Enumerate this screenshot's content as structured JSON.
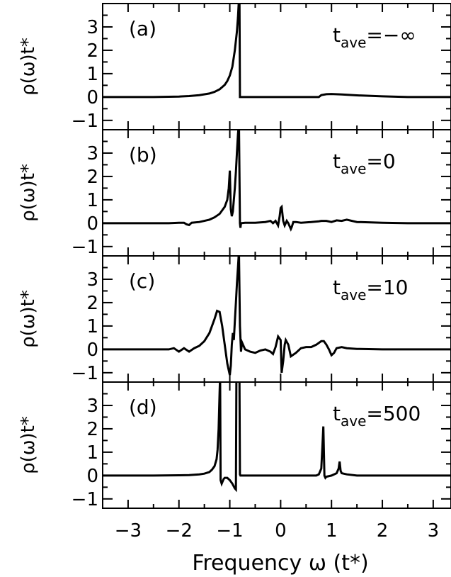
{
  "chart_data": {
    "type": "line",
    "xlabel": "Frequency ω (t*)",
    "xlim": [
      -3.5,
      3.35
    ],
    "ylim": [
      -1.4,
      4.0
    ],
    "x_ticks": [
      -3,
      -2,
      -1,
      0,
      1,
      2,
      3
    ],
    "x_tick_labels": [
      "−3",
      "−2",
      "−1",
      "0",
      "1",
      "2",
      "3"
    ],
    "y_ticks": [
      -1,
      0,
      1,
      2,
      3
    ],
    "y_tick_labels": [
      "−1",
      "0",
      "1",
      "2",
      "3"
    ],
    "line_color": "#000000",
    "panels": [
      {
        "id": "a",
        "panel_label": "(a)",
        "ylabel": "ρ(ω)t*",
        "annotation": {
          "base": "t",
          "sub": "ave",
          "value": "=−∞"
        },
        "x": [
          -3.5,
          -2.5,
          -2.0,
          -1.8,
          -1.6,
          -1.4,
          -1.3,
          -1.2,
          -1.1,
          -1.05,
          -1.0,
          -0.95,
          -0.9,
          -0.86,
          -0.84,
          -0.83,
          -0.82,
          -0.81,
          -0.805,
          -0.8,
          -0.79,
          -0.5,
          0.0,
          0.5,
          0.75,
          0.8,
          0.9,
          1.0,
          1.2,
          1.5,
          2.0,
          2.5,
          3.35
        ],
        "y": [
          0.0,
          0.0,
          0.02,
          0.04,
          0.08,
          0.15,
          0.22,
          0.33,
          0.52,
          0.68,
          0.92,
          1.3,
          2.0,
          2.8,
          3.4,
          3.8,
          4.2,
          4.5,
          2.0,
          0.0,
          0.0,
          0.0,
          0.0,
          0.0,
          0.0,
          0.08,
          0.12,
          0.13,
          0.11,
          0.07,
          0.03,
          0.0,
          0.0
        ]
      },
      {
        "id": "b",
        "panel_label": "(b)",
        "ylabel": "ρ(ω)t*",
        "annotation": {
          "base": "t",
          "sub": "ave",
          "value": "=0"
        },
        "x": [
          -3.5,
          -2.2,
          -2.0,
          -1.9,
          -1.85,
          -1.8,
          -1.75,
          -1.6,
          -1.4,
          -1.3,
          -1.2,
          -1.1,
          -1.05,
          -1.02,
          -1.0,
          -0.98,
          -0.96,
          -0.94,
          -0.92,
          -0.9,
          -0.88,
          -0.86,
          -0.84,
          -0.82,
          -0.8,
          -0.79,
          -0.78,
          -0.7,
          -0.5,
          -0.3,
          -0.2,
          -0.15,
          -0.1,
          -0.05,
          -0.02,
          0.0,
          0.02,
          0.05,
          0.08,
          0.12,
          0.15,
          0.2,
          0.22,
          0.25,
          0.3,
          0.4,
          0.6,
          0.75,
          0.8,
          0.9,
          1.0,
          1.1,
          1.2,
          1.3,
          1.5,
          2.0,
          2.5,
          3.35
        ],
        "y": [
          0.0,
          0.0,
          0.02,
          0.02,
          -0.05,
          -0.08,
          0.02,
          0.05,
          0.15,
          0.25,
          0.4,
          0.7,
          1.0,
          1.5,
          2.25,
          0.6,
          0.3,
          0.5,
          1.0,
          1.5,
          2.2,
          3.0,
          3.8,
          4.3,
          0.0,
          -0.2,
          0.0,
          0.02,
          0.02,
          0.05,
          0.1,
          0.0,
          0.1,
          -0.1,
          0.3,
          0.65,
          0.7,
          0.1,
          -0.1,
          0.1,
          0.0,
          -0.25,
          -0.15,
          0.05,
          0.05,
          0.02,
          0.05,
          0.08,
          0.1,
          0.1,
          0.05,
          0.12,
          0.1,
          0.15,
          0.05,
          0.02,
          0.0,
          0.0
        ]
      },
      {
        "id": "c",
        "panel_label": "(c)",
        "ylabel": "ρ(ω)t*",
        "annotation": {
          "base": "t",
          "sub": "ave",
          "value": "=10"
        },
        "x": [
          -3.5,
          -2.2,
          -2.1,
          -2.0,
          -1.9,
          -1.8,
          -1.7,
          -1.6,
          -1.5,
          -1.4,
          -1.3,
          -1.25,
          -1.2,
          -1.15,
          -1.1,
          -1.05,
          -1.02,
          -1.0,
          -0.98,
          -0.96,
          -0.94,
          -0.92,
          -0.9,
          -0.88,
          -0.86,
          -0.84,
          -0.82,
          -0.8,
          -0.78,
          -0.76,
          -0.7,
          -0.6,
          -0.5,
          -0.4,
          -0.3,
          -0.2,
          -0.15,
          -0.1,
          -0.05,
          0.0,
          0.02,
          0.05,
          0.08,
          0.1,
          0.15,
          0.2,
          0.3,
          0.4,
          0.5,
          0.6,
          0.7,
          0.8,
          0.85,
          0.9,
          0.95,
          1.0,
          1.05,
          1.1,
          1.2,
          1.3,
          1.5,
          2.0,
          2.5,
          3.35
        ],
        "y": [
          0.0,
          0.0,
          0.05,
          -0.1,
          0.05,
          -0.1,
          0.05,
          0.15,
          0.35,
          0.7,
          1.3,
          1.65,
          1.6,
          1.0,
          0.2,
          -0.6,
          -0.9,
          -1.1,
          -0.7,
          0.2,
          0.7,
          0.4,
          1.2,
          2.0,
          2.8,
          3.5,
          4.2,
          1.0,
          -0.1,
          0.3,
          0.0,
          -0.1,
          -0.15,
          -0.05,
          0.0,
          -0.1,
          -0.2,
          0.1,
          0.55,
          0.4,
          -1.0,
          -0.5,
          0.2,
          0.4,
          0.2,
          -0.3,
          -0.15,
          0.05,
          0.1,
          0.1,
          0.2,
          0.35,
          0.35,
          0.2,
          0.0,
          -0.25,
          -0.15,
          0.05,
          0.1,
          0.05,
          0.02,
          0.0,
          0.0,
          0.0
        ]
      },
      {
        "id": "d",
        "panel_label": "(d)",
        "ylabel": "ρ(ω)t*",
        "annotation": {
          "base": "t",
          "sub": "ave",
          "value": "=500"
        },
        "x": [
          -3.5,
          -2.5,
          -2.0,
          -1.8,
          -1.6,
          -1.5,
          -1.4,
          -1.35,
          -1.3,
          -1.26,
          -1.24,
          -1.22,
          -1.2,
          -1.19,
          -1.18,
          -1.16,
          -1.14,
          -1.12,
          -1.1,
          -1.05,
          -1.0,
          -0.95,
          -0.9,
          -0.88,
          -0.87,
          -0.86,
          -0.85,
          -0.84,
          -0.83,
          -0.82,
          -0.81,
          -0.8,
          -0.79,
          -0.7,
          -0.5,
          0.0,
          0.5,
          0.7,
          0.75,
          0.8,
          0.82,
          0.84,
          0.86,
          0.88,
          0.9,
          1.0,
          1.1,
          1.14,
          1.16,
          1.18,
          1.2,
          1.3,
          1.5,
          2.0,
          2.5,
          3.35
        ],
        "y": [
          0.0,
          0.0,
          0.01,
          0.02,
          0.05,
          0.08,
          0.15,
          0.25,
          0.4,
          0.7,
          1.1,
          2.0,
          3.6,
          4.3,
          -0.2,
          -0.35,
          -0.25,
          -0.15,
          -0.1,
          -0.1,
          -0.2,
          -0.35,
          -0.55,
          -0.6,
          4.3,
          4.3,
          4.3,
          4.3,
          4.3,
          4.3,
          4.3,
          0.05,
          0.0,
          0.0,
          0.0,
          0.0,
          0.0,
          0.0,
          0.05,
          0.3,
          1.2,
          2.1,
          0.0,
          -0.1,
          -0.05,
          0.0,
          0.1,
          0.3,
          0.6,
          0.2,
          0.1,
          0.05,
          0.0,
          0.0,
          0.0,
          0.0
        ]
      }
    ]
  }
}
